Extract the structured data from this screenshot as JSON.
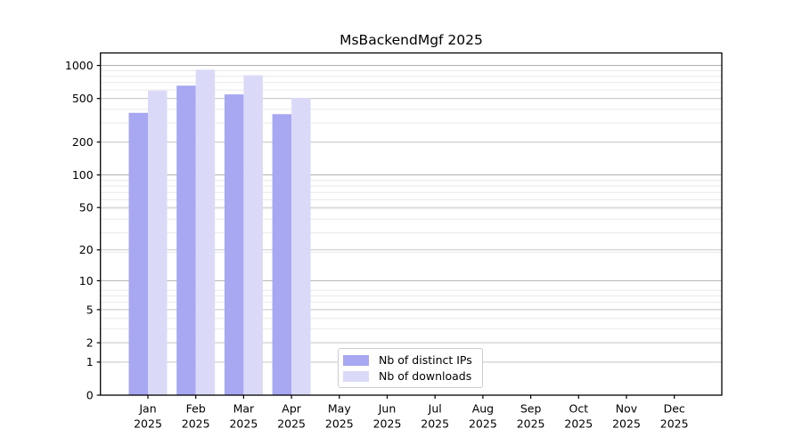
{
  "chart_data": {
    "type": "bar",
    "title": "MsBackendMgf 2025",
    "categories": [
      "Jan",
      "Feb",
      "Mar",
      "Apr",
      "May",
      "Jun",
      "Jul",
      "Aug",
      "Sep",
      "Oct",
      "Nov",
      "Dec"
    ],
    "category_year": "2025",
    "series": [
      {
        "name": "Nb of distinct IPs",
        "color": "#a7a7f2",
        "values": [
          370,
          655,
          545,
          360,
          0,
          0,
          0,
          0,
          0,
          0,
          0,
          0
        ]
      },
      {
        "name": "Nb of downloads",
        "color": "#dadaf8",
        "values": [
          590,
          915,
          815,
          505,
          0,
          0,
          0,
          0,
          0,
          0,
          0,
          0
        ]
      }
    ],
    "yscale": "log1p",
    "yticks": [
      0,
      1,
      2,
      5,
      10,
      20,
      50,
      100,
      200,
      500,
      1000
    ],
    "ylim": [
      0,
      1300
    ],
    "grid": "both",
    "legend_position": "lower center",
    "xlabel": "",
    "ylabel": ""
  },
  "colors": {
    "background": "#ffffff",
    "axis": "#000000",
    "text": "#000000",
    "decade_grid": "#b0b0b0",
    "major_grid": "#c9c9c9",
    "minor_grid": "#e9e9e9",
    "legend_border": "#cccccc"
  }
}
